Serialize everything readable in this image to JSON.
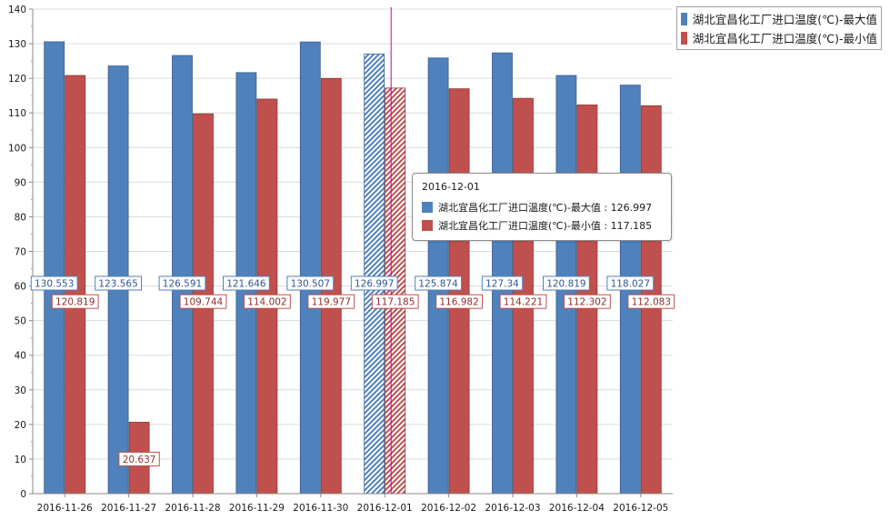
{
  "chart_data": {
    "type": "bar",
    "categories": [
      "2016-11-26",
      "2016-11-27",
      "2016-11-28",
      "2016-11-29",
      "2016-11-30",
      "2016-12-01",
      "2016-12-02",
      "2016-12-03",
      "2016-12-04",
      "2016-12-05"
    ],
    "series": [
      {
        "name": "湖北宜昌化工厂进口温度(℃)-最大值",
        "color": "#4f81bd",
        "values": [
          130.553,
          123.565,
          126.591,
          121.646,
          130.507,
          126.997,
          125.874,
          127.34,
          120.819,
          118.027
        ],
        "labels": [
          "130.553",
          "123.565",
          "126.591",
          "121.646",
          "130.507",
          "126.997",
          "125.874",
          "127.34",
          "120.819",
          "118.027"
        ]
      },
      {
        "name": "湖北宜昌化工厂进口温度(℃)-最小值",
        "color": "#c0504d",
        "values": [
          120.819,
          20.637,
          109.744,
          114.002,
          119.977,
          117.185,
          116.982,
          114.221,
          112.302,
          112.083
        ],
        "labels": [
          "120.819",
          "20.637",
          "109.744",
          "114.002",
          "119.977",
          "117.185",
          "116.982",
          "114.221",
          "112.302",
          "112.083"
        ]
      }
    ],
    "ylim": [
      0,
      140
    ],
    "yticks": [
      "0",
      "10",
      "20",
      "30",
      "40",
      "50",
      "60",
      "70",
      "80",
      "90",
      "100",
      "110",
      "120",
      "130",
      "140"
    ],
    "grid": true,
    "legend_position": "top-right",
    "highlighted_category": "2016-12-01",
    "crosshair_color": "#c000c0"
  },
  "legend": {
    "items": [
      {
        "label": "湖北宜昌化工厂进口温度(℃)-最大值",
        "color": "#4f81bd"
      },
      {
        "label": "湖北宜昌化工厂进口温度(℃)-最小值",
        "color": "#c0504d"
      }
    ]
  },
  "tooltip": {
    "title": "2016-12-01",
    "rows": [
      {
        "text": "湖北宜昌化工厂进口温度(℃)-最大值 : 126.997",
        "color": "#4f81bd"
      },
      {
        "text": "湖北宜昌化工厂进口温度(℃)-最小值 : 117.185",
        "color": "#c0504d"
      }
    ]
  }
}
